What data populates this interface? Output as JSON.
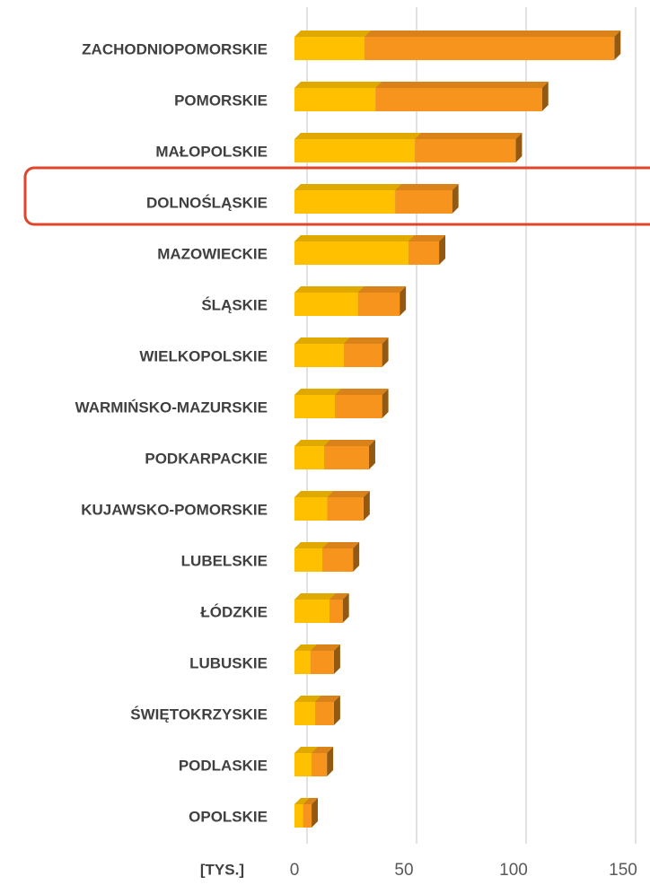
{
  "chart_data": {
    "type": "bar",
    "orientation": "horizontal",
    "stacked": true,
    "x_axis_label": "[TYS.]",
    "categories": [
      "ZACHODNIOPOMORSKIE",
      "POMORSKIE",
      "MAŁOPOLSKIE",
      "DOLNOŚLĄSKIE",
      "MAZOWIECKIE",
      "ŚLĄSKIE",
      "WIELKOPOLSKIE",
      "WARMIŃSKO-MAZURSKIE",
      "PODKARPACKIE",
      "KUJAWSKO-POMORSKIE",
      "LUBELSKIE",
      "ŁÓDZKIE",
      "LUBUSKIE",
      "ŚWIĘTOKRZYSKIE",
      "PODLASKIE",
      "OPOLSKIE"
    ],
    "series": [
      {
        "color": "#FFC000",
        "values": [
          32,
          37,
          55,
          46,
          52,
          29,
          22.5,
          18.5,
          13.5,
          15,
          12.7,
          16,
          7.4,
          9.4,
          7.8,
          4
        ]
      },
      {
        "color": "#F7941D",
        "values": [
          114,
          76,
          46,
          26,
          14,
          19,
          17.5,
          21.5,
          20.5,
          16.5,
          14,
          6,
          10.6,
          8.6,
          7,
          3.8
        ]
      }
    ],
    "xlim": [
      0,
      150
    ],
    "xticks": [
      0,
      50,
      100,
      150
    ],
    "grid": true
  }
}
